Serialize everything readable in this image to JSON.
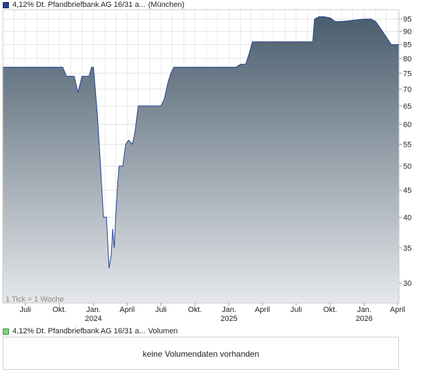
{
  "legend": {
    "price_label": "4,12% Dt. Pfandbriefbank AG 16/31 a...",
    "price_exchange": "(München)",
    "volume_label": "4,12% Dt. Pfandbriefbank AG 16/31 a...",
    "volume_suffix": "Volumen",
    "price_color": "#233f8f",
    "volume_color": "#7fd07f"
  },
  "tick_note": "1 Tick = 1 Woche",
  "volume_panel": {
    "message": "keine Volumendaten vorhanden"
  },
  "chart_data": {
    "type": "area",
    "scale": "log",
    "grid": true,
    "ylim": [
      27.5,
      99
    ],
    "y_ticks": [
      30,
      35,
      40,
      45,
      50,
      55,
      60,
      65,
      70,
      75,
      80,
      85,
      90,
      95
    ],
    "x_ticks": [
      {
        "label": "Juli",
        "year": "",
        "date": "2023-07-01"
      },
      {
        "label": "Okt.",
        "year": "",
        "date": "2023-10-01"
      },
      {
        "label": "Jan.",
        "year": "2024",
        "date": "2024-01-01"
      },
      {
        "label": "April",
        "year": "",
        "date": "2024-04-01"
      },
      {
        "label": "Juli",
        "year": "",
        "date": "2024-07-01"
      },
      {
        "label": "Okt.",
        "year": "",
        "date": "2024-10-01"
      },
      {
        "label": "Jan.",
        "year": "2025",
        "date": "2025-01-01"
      },
      {
        "label": "April",
        "year": "",
        "date": "2025-04-01"
      },
      {
        "label": "Juli",
        "year": "",
        "date": "2025-07-01"
      },
      {
        "label": "Okt.",
        "year": "",
        "date": "2025-10-01"
      },
      {
        "label": "Jan.",
        "year": "2026",
        "date": "2026-01-01"
      },
      {
        "label": "April",
        "year": "",
        "date": "2026-04-01"
      }
    ],
    "x_range": [
      "2023-05-01",
      "2026-04-05"
    ],
    "line_color": "#233f8f",
    "fill_top_color": "#4a5d6d",
    "fill_bottom_color": "#e6e8eb",
    "series": [
      {
        "points": [
          [
            "2023-05-01",
            77
          ],
          [
            "2023-05-15",
            77
          ],
          [
            "2023-06-15",
            77
          ],
          [
            "2023-07-15",
            77
          ],
          [
            "2023-08-15",
            77
          ],
          [
            "2023-09-15",
            77
          ],
          [
            "2023-10-10",
            77
          ],
          [
            "2023-10-20",
            74
          ],
          [
            "2023-11-10",
            74
          ],
          [
            "2023-11-20",
            69
          ],
          [
            "2023-12-01",
            74
          ],
          [
            "2023-12-20",
            74
          ],
          [
            "2023-12-27",
            77
          ],
          [
            "2024-01-01",
            77
          ],
          [
            "2024-01-05",
            71
          ],
          [
            "2024-01-12",
            62
          ],
          [
            "2024-01-20",
            50
          ],
          [
            "2024-01-28",
            40
          ],
          [
            "2024-02-05",
            40
          ],
          [
            "2024-02-12",
            32
          ],
          [
            "2024-02-18",
            34
          ],
          [
            "2024-02-22",
            38
          ],
          [
            "2024-02-26",
            35
          ],
          [
            "2024-03-01",
            40
          ],
          [
            "2024-03-05",
            45
          ],
          [
            "2024-03-10",
            50
          ],
          [
            "2024-03-20",
            50
          ],
          [
            "2024-03-28",
            55
          ],
          [
            "2024-04-05",
            56
          ],
          [
            "2024-04-15",
            55
          ],
          [
            "2024-04-22",
            58
          ],
          [
            "2024-05-01",
            65
          ],
          [
            "2024-05-15",
            65
          ],
          [
            "2024-06-01",
            65
          ],
          [
            "2024-06-15",
            65
          ],
          [
            "2024-07-01",
            65
          ],
          [
            "2024-07-10",
            67
          ],
          [
            "2024-07-20",
            72
          ],
          [
            "2024-07-28",
            75
          ],
          [
            "2024-08-05",
            77
          ],
          [
            "2024-09-01",
            77
          ],
          [
            "2024-10-01",
            77
          ],
          [
            "2024-11-01",
            77
          ],
          [
            "2024-12-01",
            77
          ],
          [
            "2025-01-01",
            77
          ],
          [
            "2025-01-20",
            77
          ],
          [
            "2025-02-01",
            78
          ],
          [
            "2025-02-15",
            78
          ],
          [
            "2025-02-25",
            82
          ],
          [
            "2025-03-05",
            86
          ],
          [
            "2025-04-01",
            86
          ],
          [
            "2025-05-01",
            86
          ],
          [
            "2025-06-01",
            86
          ],
          [
            "2025-07-01",
            86
          ],
          [
            "2025-08-01",
            86
          ],
          [
            "2025-08-15",
            86
          ],
          [
            "2025-08-20",
            95
          ],
          [
            "2025-09-01",
            96
          ],
          [
            "2025-09-15",
            96
          ],
          [
            "2025-10-01",
            95.5
          ],
          [
            "2025-10-15",
            94
          ],
          [
            "2025-11-01",
            94
          ],
          [
            "2025-12-01",
            94.5
          ],
          [
            "2026-01-01",
            95
          ],
          [
            "2026-01-20",
            95
          ],
          [
            "2026-02-01",
            94
          ],
          [
            "2026-02-15",
            91
          ],
          [
            "2026-03-01",
            88
          ],
          [
            "2026-03-15",
            85
          ],
          [
            "2026-04-05",
            85
          ]
        ]
      }
    ]
  }
}
